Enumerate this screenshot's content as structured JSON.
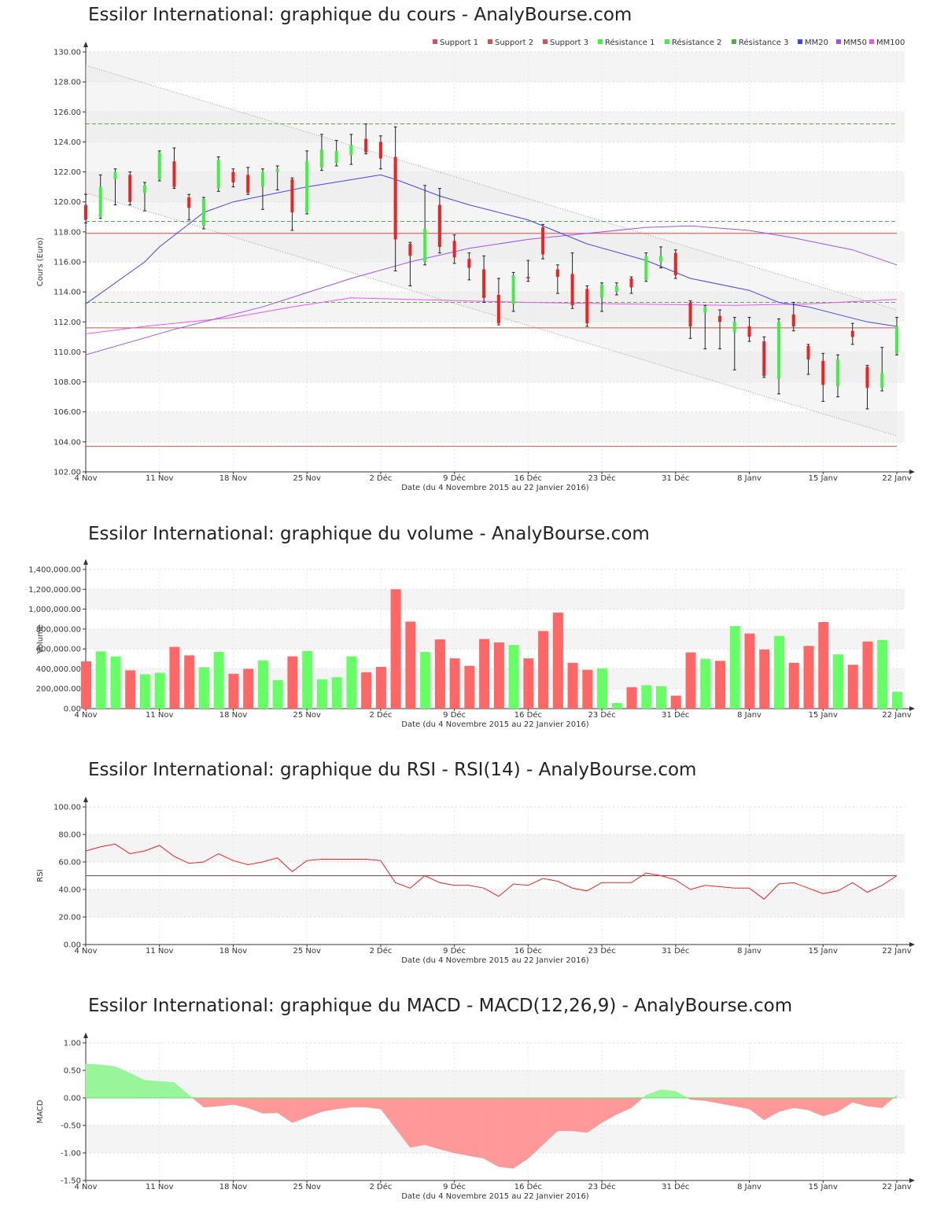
{
  "colors": {
    "up": "#44ee44",
    "down": "#ee2222",
    "vol_up": "#66ff66",
    "vol_down": "#ff6666",
    "mm20": "#4444ee",
    "mm50": "#9955ee",
    "mm100": "#ee55ee",
    "support": "#cc5555",
    "resistance": "#55aa55",
    "rsi": "#ee2222",
    "macd_pos": "#99f599",
    "macd_neg": "#ff9999"
  },
  "x_ticks": [
    "4 Nov",
    "11 Nov",
    "18 Nov",
    "25 Nov",
    "2 Déc",
    "9 Déc",
    "16 Déc",
    "23 Déc",
    "31 Déc",
    "8 Janv",
    "15 Janv",
    "22 Janv"
  ],
  "x_label": "Date (du 4 Novembre 2015 au 22 Janvier 2016)",
  "dates": [
    "4 Nov",
    "5 Nov",
    "6 Nov",
    "9 Nov",
    "10 Nov",
    "11 Nov",
    "12 Nov",
    "13 Nov",
    "16 Nov",
    "17 Nov",
    "18 Nov",
    "19 Nov",
    "20 Nov",
    "23 Nov",
    "24 Nov",
    "25 Nov",
    "26 Nov",
    "27 Nov",
    "30 Nov",
    "1 Déc",
    "2 Déc",
    "3 Déc",
    "4 Déc",
    "7 Déc",
    "8 Déc",
    "9 Déc",
    "10 Déc",
    "11 Déc",
    "14 Déc",
    "15 Déc",
    "16 Déc",
    "17 Déc",
    "18 Déc",
    "21 Déc",
    "22 Déc",
    "23 Déc",
    "24 Déc",
    "28 Déc",
    "29 Déc",
    "30 Déc",
    "31 Déc",
    "4 Janv",
    "5 Janv",
    "6 Janv",
    "7 Janv",
    "8 Janv",
    "11 Janv",
    "12 Janv",
    "13 Janv",
    "14 Janv",
    "15 Janv",
    "18 Janv",
    "19 Janv",
    "20 Janv",
    "21 Janv",
    "22 Janv"
  ],
  "price": {
    "title": "Essilor International: graphique du cours - AnalyBourse.com",
    "ylabel": "Cours (Euro)",
    "legend": [
      "Support 1",
      "Support 2",
      "Support 3",
      "Résistance 1",
      "Résistance 2",
      "Résistance 3",
      "MM20",
      "MM50",
      "MM100"
    ],
    "y_ticks": [
      "102.00",
      "104.00",
      "106.00",
      "108.00",
      "110.00",
      "112.00",
      "114.00",
      "116.00",
      "118.00",
      "120.00",
      "122.00",
      "124.00",
      "126.00",
      "128.00",
      "130.00"
    ],
    "chart_data": {
      "type": "candlestick",
      "ylim": [
        102,
        130
      ],
      "ohlc": [
        [
          119.8,
          120.5,
          118.6,
          118.8
        ],
        [
          119.0,
          121.8,
          118.9,
          121.0
        ],
        [
          121.5,
          122.2,
          119.8,
          122.0
        ],
        [
          121.8,
          122.0,
          119.8,
          120.0
        ],
        [
          120.6,
          121.3,
          119.4,
          121.1
        ],
        [
          121.5,
          123.4,
          121.4,
          123.3
        ],
        [
          122.7,
          123.6,
          120.9,
          121.0
        ],
        [
          120.3,
          120.5,
          118.8,
          119.6
        ],
        [
          118.4,
          120.3,
          118.2,
          120.2
        ],
        [
          120.9,
          123.0,
          120.7,
          122.8
        ],
        [
          122.0,
          122.2,
          121.0,
          121.3
        ],
        [
          121.8,
          122.3,
          120.5,
          120.6
        ],
        [
          121.0,
          122.2,
          119.5,
          122.0
        ],
        [
          122.0,
          122.4,
          120.8,
          122.2
        ],
        [
          121.5,
          121.6,
          118.1,
          119.3
        ],
        [
          119.3,
          123.4,
          119.2,
          122.7
        ],
        [
          122.3,
          124.5,
          122.1,
          123.5
        ],
        [
          122.6,
          124.1,
          122.4,
          123.4
        ],
        [
          123.1,
          124.5,
          122.5,
          123.8
        ],
        [
          124.2,
          125.2,
          123.2,
          123.3
        ],
        [
          124.0,
          124.4,
          122.2,
          122.9
        ],
        [
          123.0,
          125.0,
          115.4,
          117.5
        ],
        [
          117.2,
          117.3,
          114.4,
          116.4
        ],
        [
          116.0,
          121.1,
          115.8,
          118.2
        ],
        [
          119.8,
          120.9,
          116.6,
          117.0
        ],
        [
          117.4,
          117.8,
          115.9,
          116.3
        ],
        [
          116.2,
          116.6,
          114.8,
          115.6
        ],
        [
          115.5,
          116.4,
          113.3,
          113.6
        ],
        [
          113.8,
          114.9,
          111.8,
          111.9
        ],
        [
          113.2,
          115.3,
          112.7,
          115.1
        ],
        [
          115.0,
          116.1,
          114.7,
          114.9
        ],
        [
          118.3,
          118.5,
          116.2,
          116.5
        ],
        [
          115.5,
          115.8,
          113.9,
          115.0
        ],
        [
          115.2,
          116.6,
          112.9,
          113.1
        ],
        [
          114.2,
          114.4,
          111.7,
          111.9
        ],
        [
          113.6,
          114.6,
          112.7,
          114.5
        ],
        [
          114.0,
          114.6,
          113.8,
          114.4
        ],
        [
          114.9,
          115.0,
          113.9,
          114.3
        ],
        [
          114.8,
          116.6,
          114.7,
          116.4
        ],
        [
          116.0,
          117.0,
          115.6,
          116.4
        ],
        [
          116.6,
          116.8,
          114.9,
          115.1
        ],
        [
          113.3,
          113.4,
          110.9,
          111.7
        ],
        [
          112.6,
          113.1,
          110.2,
          113.0
        ],
        [
          112.4,
          112.8,
          110.2,
          112.0
        ],
        [
          111.3,
          112.3,
          108.8,
          112.0
        ],
        [
          111.7,
          112.3,
          110.7,
          111.0
        ],
        [
          110.7,
          111.0,
          108.3,
          108.4
        ],
        [
          108.2,
          112.2,
          107.2,
          112.0
        ],
        [
          112.5,
          113.3,
          111.4,
          111.7
        ],
        [
          110.4,
          110.5,
          108.5,
          109.5
        ],
        [
          109.4,
          109.9,
          106.7,
          107.8
        ],
        [
          107.7,
          109.8,
          107.0,
          109.5
        ],
        [
          111.4,
          111.9,
          110.5,
          111.0
        ],
        [
          109.0,
          109.1,
          106.2,
          107.6
        ],
        [
          107.6,
          110.3,
          107.4,
          108.6
        ],
        [
          109.9,
          112.3,
          109.8,
          111.7
        ]
      ],
      "mm20": [
        [
          0,
          113.2
        ],
        [
          4,
          116.0
        ],
        [
          5,
          117.0
        ],
        [
          8,
          119.3
        ],
        [
          10,
          120.0
        ],
        [
          15,
          121.0
        ],
        [
          20,
          121.8
        ],
        [
          21,
          121.5
        ],
        [
          24,
          120.4
        ],
        [
          26,
          119.8
        ],
        [
          30,
          118.8
        ],
        [
          34,
          117.2
        ],
        [
          38,
          116.1
        ],
        [
          41,
          114.9
        ],
        [
          45,
          114.1
        ],
        [
          47,
          113.3
        ],
        [
          49,
          113.0
        ],
        [
          51,
          112.5
        ],
        [
          53,
          112.0
        ],
        [
          55,
          111.7
        ]
      ],
      "mm50": [
        [
          0,
          109.8
        ],
        [
          6,
          111.5
        ],
        [
          12,
          113.0
        ],
        [
          18,
          114.9
        ],
        [
          22,
          116.0
        ],
        [
          26,
          116.9
        ],
        [
          30,
          117.5
        ],
        [
          34,
          117.9
        ],
        [
          38,
          118.3
        ],
        [
          41,
          118.4
        ],
        [
          45,
          118.1
        ],
        [
          48,
          117.6
        ],
        [
          52,
          116.8
        ],
        [
          55,
          115.8
        ]
      ],
      "mm100": [
        [
          0,
          111.2
        ],
        [
          4,
          111.7
        ],
        [
          10,
          112.3
        ],
        [
          14,
          113.0
        ],
        [
          18,
          113.6
        ],
        [
          22,
          113.5
        ],
        [
          26,
          113.4
        ],
        [
          30,
          113.3
        ],
        [
          36,
          113.2
        ],
        [
          44,
          113.1
        ],
        [
          49,
          113.2
        ],
        [
          55,
          113.5
        ]
      ],
      "support": [
        117.9,
        111.6,
        103.7
      ],
      "resistance": [
        125.2,
        118.7,
        113.3
      ]
    }
  },
  "volume": {
    "title": "Essilor International: graphique du volume - AnalyBourse.com",
    "ylabel": "Volume",
    "y_ticks": [
      "0.00",
      "200,000.00",
      "400,000.00",
      "600,000.00",
      "800,000.00",
      "1,000,000.00",
      "1,200,000.00",
      "1,400,000.00"
    ],
    "chart_data": {
      "type": "bar",
      "ylim": [
        0,
        1400000
      ],
      "values": [
        475000,
        575000,
        525000,
        385000,
        345000,
        360000,
        620000,
        535000,
        415000,
        570000,
        350000,
        400000,
        485000,
        285000,
        525000,
        580000,
        295000,
        315000,
        525000,
        365000,
        420000,
        1200000,
        875000,
        570000,
        695000,
        505000,
        430000,
        700000,
        665000,
        640000,
        505000,
        780000,
        965000,
        460000,
        390000,
        405000,
        55000,
        215000,
        235000,
        225000,
        130000,
        565000,
        500000,
        480000,
        830000,
        755000,
        595000,
        730000,
        460000,
        630000,
        870000,
        545000,
        440000,
        675000,
        690000,
        170000
      ]
    }
  },
  "rsi": {
    "title": "Essilor International: graphique du RSI - RSI(14) - AnalyBourse.com",
    "ylabel": "RSI",
    "y_ticks": [
      "0.00",
      "20.00",
      "40.00",
      "60.00",
      "80.00",
      "100.00"
    ],
    "chart_data": {
      "type": "line",
      "ylim": [
        0,
        100
      ],
      "reference": 50,
      "values": [
        68,
        71,
        73,
        66,
        68,
        72,
        64,
        59,
        60,
        66,
        61,
        58,
        60,
        63,
        53,
        61,
        62,
        62,
        62,
        62,
        61,
        45,
        41,
        50,
        45,
        43,
        43,
        41,
        35,
        44,
        43,
        48,
        46,
        41,
        39,
        45,
        45,
        45,
        52,
        50,
        47,
        40,
        43,
        42,
        41,
        41,
        33,
        44,
        45,
        41,
        37,
        39,
        45,
        38,
        43,
        50
      ]
    }
  },
  "macd": {
    "title": "Essilor International: graphique du MACD - MACD(12,26,9) - AnalyBourse.com",
    "ylabel": "MACD",
    "y_ticks": [
      "-1.50",
      "-1.00",
      "-0.50",
      "0.00",
      "0.50",
      "1.00"
    ],
    "chart_data": {
      "type": "area",
      "ylim": [
        -1.5,
        1.0
      ],
      "values": [
        0.62,
        0.6,
        0.57,
        0.45,
        0.32,
        0.3,
        0.28,
        0.05,
        -0.17,
        -0.15,
        -0.12,
        -0.18,
        -0.28,
        -0.27,
        -0.45,
        -0.35,
        -0.25,
        -0.2,
        -0.17,
        -0.17,
        -0.2,
        -0.55,
        -0.9,
        -0.85,
        -0.93,
        -1.0,
        -1.05,
        -1.1,
        -1.25,
        -1.28,
        -1.1,
        -0.85,
        -0.6,
        -0.6,
        -0.63,
        -0.45,
        -0.3,
        -0.18,
        0.05,
        0.15,
        0.12,
        -0.03,
        -0.05,
        -0.1,
        -0.15,
        -0.2,
        -0.4,
        -0.25,
        -0.18,
        -0.22,
        -0.33,
        -0.25,
        -0.08,
        -0.15,
        -0.18,
        0.05
      ]
    }
  }
}
